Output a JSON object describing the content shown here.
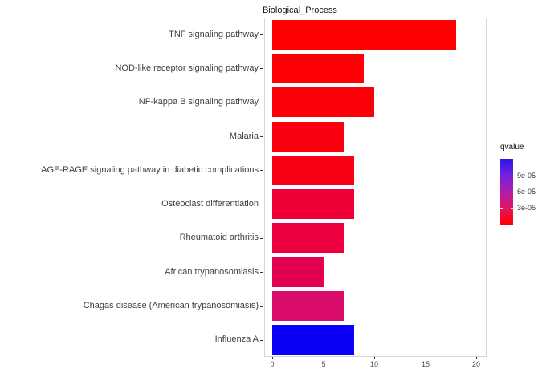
{
  "chart_data": {
    "type": "bar",
    "orientation": "horizontal",
    "title": "Biological_Process",
    "categories": [
      "TNF signaling pathway",
      "NOD-like receptor signaling pathway",
      "NF-kappa B signaling pathway",
      "Malaria",
      "AGE-RAGE signaling pathway in diabetic complications",
      "Osteoclast differentiation",
      "Rheumatoid arthritis",
      "African trypanosomiasis",
      "Chagas disease (American trypanosomiasis)",
      "Influenza A"
    ],
    "values": [
      18,
      9,
      10,
      7,
      8,
      8,
      7,
      5,
      7,
      8
    ],
    "bar_colors": [
      "#FF0000",
      "#FE0004",
      "#FC000A",
      "#FB000E",
      "#F90016",
      "#EE0037",
      "#EC003D",
      "#E30052",
      "#DA0D6A",
      "#0B00F5"
    ],
    "qvalue_estimated": [
      1e-06,
      2e-06,
      4e-06,
      5e-06,
      8e-06,
      1.8e-05,
      2e-05,
      2.8e-05,
      3.6e-05,
      0.000115
    ],
    "xlabel": "",
    "ylabel": "",
    "xlim": [
      0,
      20
    ],
    "x_tick_values": [
      0,
      5,
      10,
      15,
      20
    ],
    "x_tick_labels": [
      "0",
      "5",
      "10",
      "15",
      "20"
    ],
    "grid": false,
    "panel_border_color": "#d6d6d6",
    "legend": {
      "title": "qvalue",
      "position": "right",
      "tick_labels": [
        "9e-05",
        "6e-05",
        "3e-05"
      ],
      "gradient_stops": [
        "#2E12EC",
        "#7224DE",
        "#B01DA8",
        "#E31562",
        "#FD0100"
      ],
      "gradient_direction": "blue-top-high-to-red-bottom-low"
    }
  }
}
